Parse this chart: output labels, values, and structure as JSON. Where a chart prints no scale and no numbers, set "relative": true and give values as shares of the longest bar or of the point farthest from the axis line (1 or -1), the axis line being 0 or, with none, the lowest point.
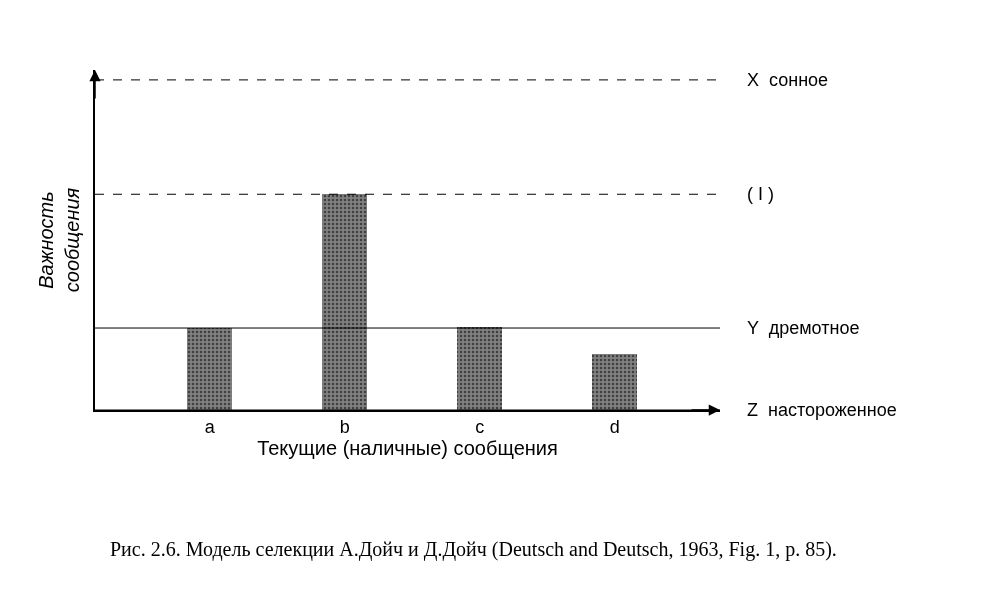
{
  "chart_data": {
    "type": "bar",
    "relative": true,
    "categories": [
      "a",
      "b",
      "c",
      "d"
    ],
    "values": [
      0.38,
      1.0,
      0.385,
      0.26
    ],
    "color": "#808080",
    "xlabel": "Текущие (наличные) сообщения",
    "ylabel": "Важность сообщения",
    "ref_lines": [
      {
        "axis": "y",
        "value": 1.53,
        "label": "X  сонное",
        "line_style": "dashed"
      },
      {
        "axis": "y",
        "value": 1.0,
        "label": "( I )",
        "line_style": "dashed"
      },
      {
        "axis": "y",
        "value": 0.38,
        "label": "Y  дремотное",
        "line_style": "solid"
      },
      {
        "axis": "y",
        "value": 0,
        "label": "Z  настороженное",
        "line_style": "solid"
      }
    ],
    "annotations": [
      "Рис. 2.6. Модель селекции А.Дойч и Д.Дойч (Deutsch and Deutsch, 1963, Fig. 1, p. 85)."
    ],
    "marker": "none"
  }
}
